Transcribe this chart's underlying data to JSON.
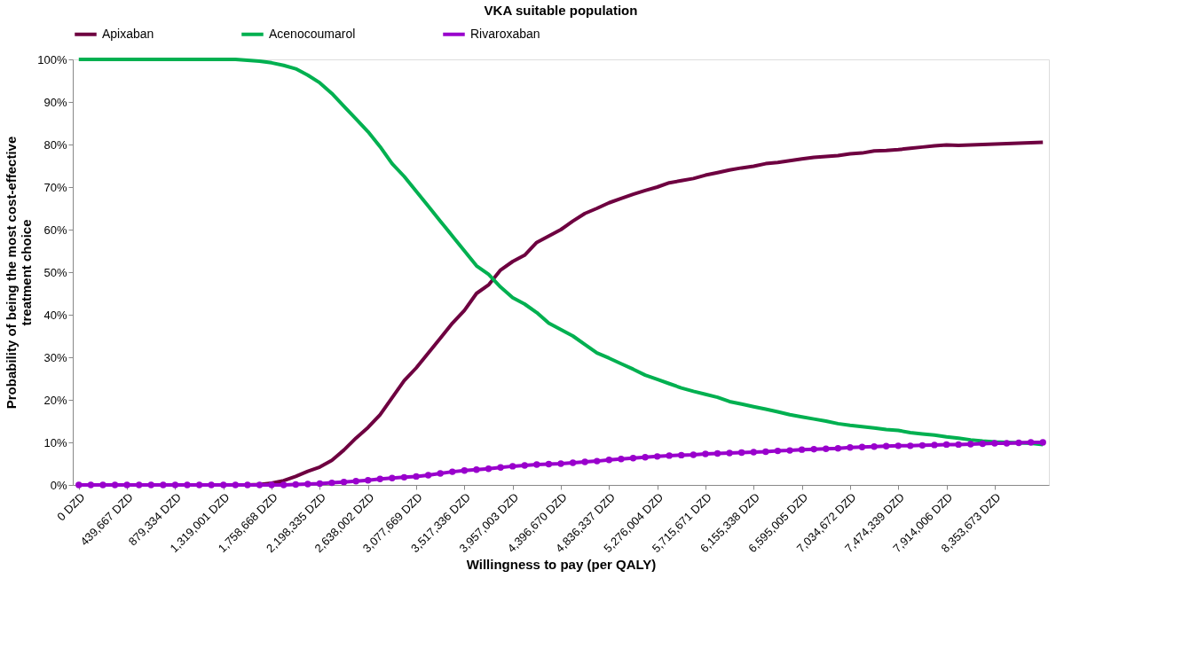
{
  "chart_data": {
    "type": "line",
    "title": "VKA suitable population",
    "xlabel": "Willingness to pay (per QALY)",
    "ylabel": "Probability of being the most cost-effective\ntreatment choice",
    "categories": [
      "0 DZD",
      null,
      null,
      null,
      "439,667 DZD",
      null,
      null,
      null,
      "879,334 DZD",
      null,
      null,
      null,
      "1,319,001 DZD",
      null,
      null,
      null,
      "1,758,668 DZD",
      null,
      null,
      null,
      "2,198,335 DZD",
      null,
      null,
      null,
      "2,638,002 DZD",
      null,
      null,
      null,
      "3,077,669 DZD",
      null,
      null,
      null,
      "3,517,336 DZD",
      null,
      null,
      null,
      "3,957,003 DZD",
      null,
      null,
      null,
      "4,396,670 DZD",
      null,
      null,
      null,
      "4,836,337 DZD",
      null,
      null,
      null,
      "5,276,004 DZD",
      null,
      null,
      null,
      "5,715,671 DZD",
      null,
      null,
      null,
      "6,155,338 DZD",
      null,
      null,
      null,
      "6,595,005 DZD",
      null,
      null,
      null,
      "7,034,672 DZD",
      null,
      null,
      null,
      "7,474,339 DZD",
      null,
      null,
      null,
      "7,914,006 DZD",
      null,
      null,
      null,
      "8,353,673 DZD",
      null,
      null,
      null,
      null
    ],
    "series": [
      {
        "name": "Apixaban",
        "color": "#6e0040",
        "marker": "none",
        "values": [
          null,
          null,
          null,
          null,
          null,
          null,
          null,
          null,
          null,
          null,
          null,
          null,
          null,
          null,
          0,
          0.1,
          0.4,
          1,
          2,
          3.2,
          4.2,
          5.8,
          8.2,
          11,
          13.5,
          16.5,
          20.5,
          24.5,
          27.5,
          31,
          34.5,
          38,
          41,
          45,
          47,
          50.5,
          52.5,
          54,
          57,
          58.5,
          60,
          62,
          63.8,
          65,
          66.3,
          67.3,
          68.3,
          69.2,
          70,
          71,
          71.5,
          72,
          72.8,
          73.4,
          74,
          74.5,
          74.9,
          75.5,
          75.8,
          76.2,
          76.6,
          77,
          77.2,
          77.4,
          77.8,
          78,
          78.5,
          78.6,
          78.8,
          79.1,
          79.4,
          79.7,
          79.9,
          79.8,
          79.9,
          80,
          80.1,
          80.2,
          80.3,
          80.4,
          80.5
        ]
      },
      {
        "name": "Acenocoumarol",
        "color": "#00b050",
        "marker": "none",
        "values": [
          100,
          100,
          100,
          100,
          100,
          100,
          100,
          100,
          100,
          100,
          100,
          100,
          100,
          100,
          99.8,
          99.6,
          99.2,
          98.6,
          97.8,
          96.3,
          94.5,
          92,
          89,
          86,
          83,
          79.5,
          75.5,
          72.5,
          69,
          65.5,
          62,
          58.5,
          55,
          51.5,
          49.5,
          46.5,
          44,
          42.5,
          40.5,
          38,
          36.5,
          35,
          33,
          31,
          29.8,
          28.5,
          27.2,
          25.8,
          24.8,
          23.8,
          22.8,
          22,
          21.3,
          20.6,
          19.6,
          19,
          18.4,
          17.8,
          17.2,
          16.5,
          16,
          15.5,
          15,
          14.4,
          14,
          13.7,
          13.4,
          13,
          12.8,
          12.3,
          12,
          11.7,
          11.3,
          11,
          10.6,
          10.3,
          10.1,
          10,
          9.9,
          9.8,
          9.5
        ]
      },
      {
        "name": "Rivaroxaban",
        "color": "#9900cc",
        "marker": "circle",
        "values": [
          0,
          0,
          0,
          0,
          0,
          0,
          0,
          0,
          0,
          0,
          0,
          0,
          0,
          0,
          0,
          0,
          0,
          0,
          0.1,
          0.2,
          0.3,
          0.5,
          0.7,
          0.9,
          1.1,
          1.4,
          1.6,
          1.8,
          2,
          2.3,
          2.7,
          3.1,
          3.4,
          3.6,
          3.8,
          4.1,
          4.4,
          4.6,
          4.8,
          4.9,
          5,
          5.2,
          5.4,
          5.6,
          5.9,
          6.1,
          6.3,
          6.5,
          6.7,
          6.9,
          7,
          7.1,
          7.3,
          7.4,
          7.5,
          7.6,
          7.7,
          7.8,
          8,
          8.1,
          8.3,
          8.4,
          8.5,
          8.6,
          8.8,
          8.9,
          9,
          9.1,
          9.2,
          9.2,
          9.3,
          9.4,
          9.5,
          9.5,
          9.6,
          9.7,
          9.8,
          9.8,
          9.9,
          10,
          10
        ]
      }
    ],
    "ylim": [
      0,
      100
    ],
    "yticks": [
      {
        "value": 0,
        "label": "0%"
      },
      {
        "value": 10,
        "label": "10%"
      },
      {
        "value": 20,
        "label": "20%"
      },
      {
        "value": 30,
        "label": "30%"
      },
      {
        "value": 40,
        "label": "40%"
      },
      {
        "value": 50,
        "label": "50%"
      },
      {
        "value": 60,
        "label": "60%"
      },
      {
        "value": 70,
        "label": "70%"
      },
      {
        "value": 80,
        "label": "80%"
      },
      {
        "value": 90,
        "label": "90%"
      },
      {
        "value": 100,
        "label": "100%"
      }
    ],
    "legend": "top",
    "line_style": "solid"
  }
}
